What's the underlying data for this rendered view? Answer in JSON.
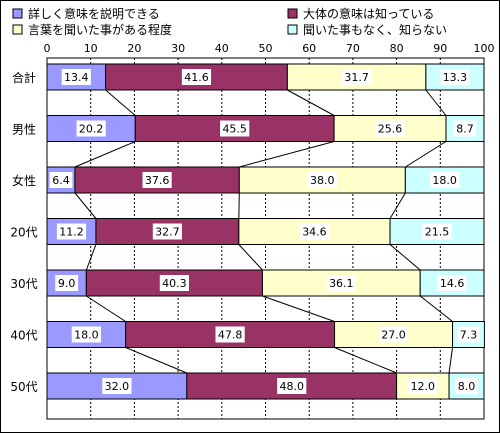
{
  "chart_data": {
    "type": "bar",
    "stacked": true,
    "percent": true,
    "orientation": "horizontal",
    "xlim": [
      0,
      100
    ],
    "ticks": [
      0,
      10,
      20,
      30,
      40,
      50,
      60,
      70,
      80,
      90,
      100
    ],
    "grid": true,
    "legend_position": "top",
    "categories": [
      "合計",
      "男性",
      "女性",
      "20代",
      "30代",
      "40代",
      "50代"
    ],
    "series": [
      {
        "name": "詳しく意味を説明できる",
        "color": "#9999ff",
        "values": [
          13.4,
          20.2,
          6.4,
          11.2,
          9.0,
          18.0,
          32.0
        ]
      },
      {
        "name": "大体の意味は知っている",
        "color": "#993366",
        "values": [
          41.6,
          45.5,
          37.6,
          32.7,
          40.3,
          47.8,
          48.0
        ]
      },
      {
        "name": "言葉を聞いた事がある程度",
        "color": "#ffffcc",
        "values": [
          31.7,
          25.6,
          38.0,
          34.6,
          36.1,
          27.0,
          12.0
        ]
      },
      {
        "name": "聞いた事もなく、知らない",
        "color": "#ccffff",
        "values": [
          13.3,
          8.7,
          18.0,
          21.5,
          14.6,
          7.3,
          8.0
        ]
      }
    ]
  }
}
